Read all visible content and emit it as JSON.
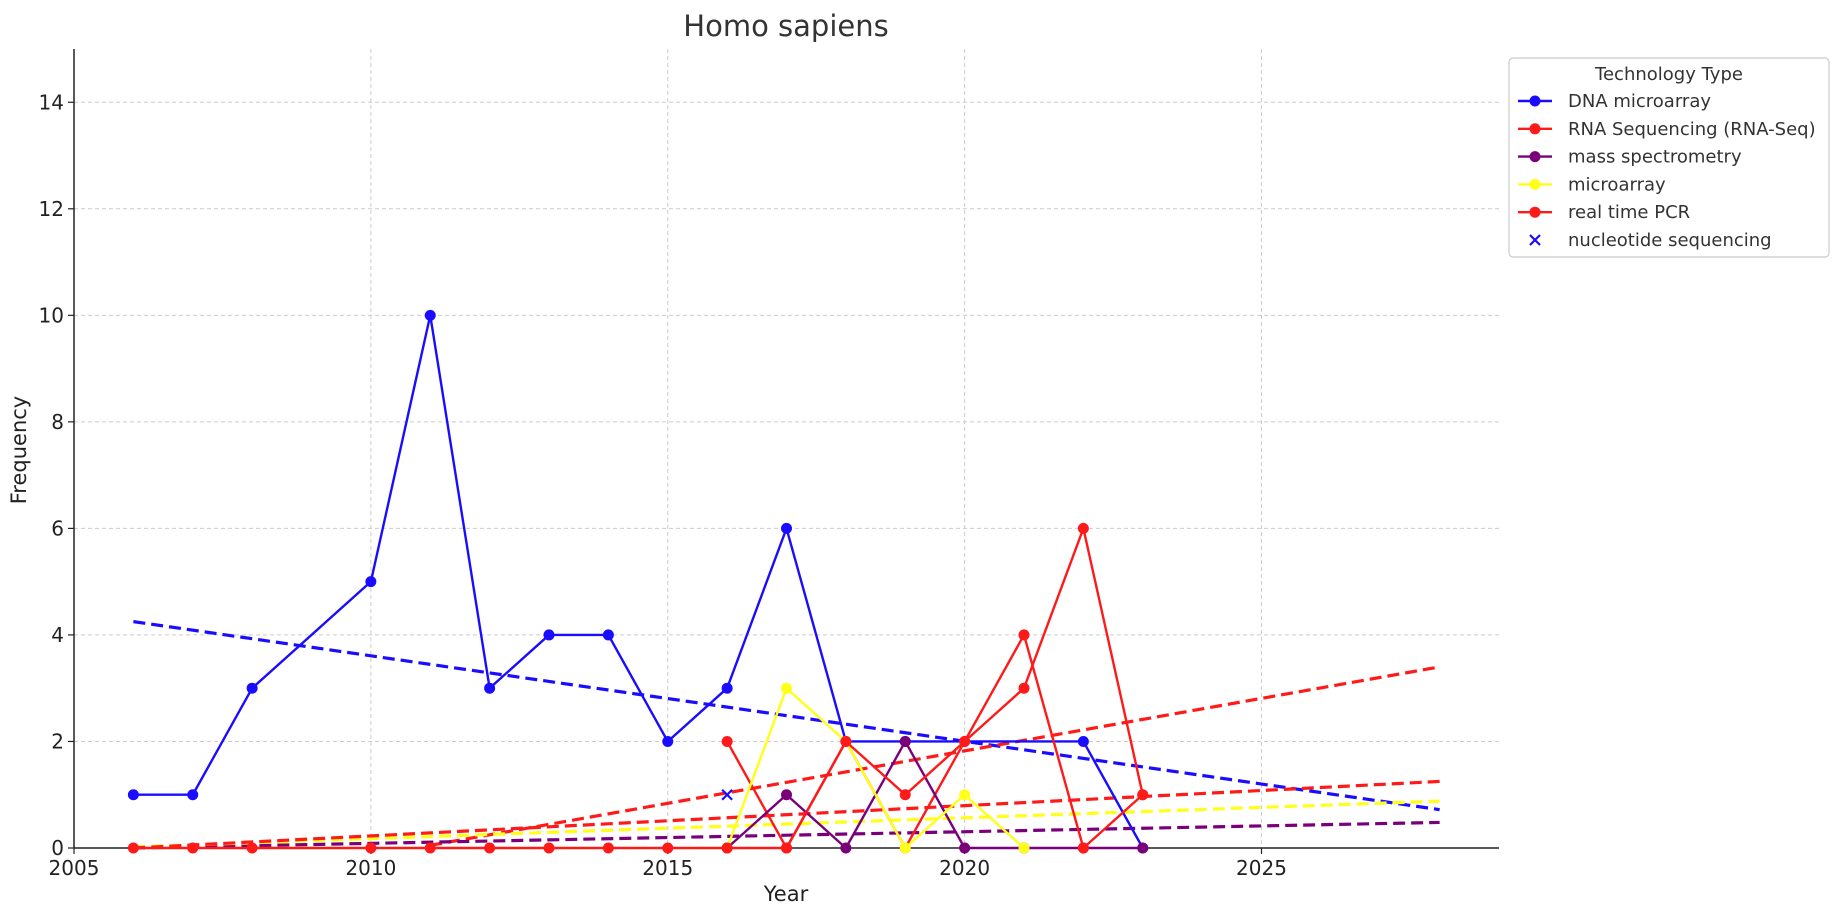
{
  "chart_data": {
    "type": "line",
    "title": "Homo sapiens",
    "xlabel": "Year",
    "ylabel": "Frequency",
    "xlim": [
      2005,
      2029
    ],
    "ylim": [
      0,
      15
    ],
    "xticks": [
      2005,
      2010,
      2015,
      2020,
      2025
    ],
    "yticks": [
      0,
      2,
      4,
      6,
      8,
      10,
      12,
      14
    ],
    "grid": true,
    "legend": {
      "title": "Technology Type",
      "placement": "outside-top-right"
    },
    "series": [
      {
        "name": "DNA microarray",
        "color": "#1a0dff",
        "style": "line-marker",
        "x": [
          2006,
          2007,
          2008,
          2010,
          2011,
          2012,
          2013,
          2014,
          2015,
          2016,
          2017,
          2018,
          2019,
          2022,
          2023
        ],
        "y": [
          1,
          1,
          3,
          5,
          10,
          3,
          4,
          4,
          2,
          3,
          6,
          2,
          2,
          2,
          0
        ],
        "trend": {
          "x": [
            2006,
            2028
          ],
          "y": [
            4.25,
            0.72
          ]
        }
      },
      {
        "name": "RNA Sequencing (RNA-Seq)",
        "color": "#ff1a1a",
        "style": "line-marker",
        "x": [
          2016,
          2017,
          2018,
          2019,
          2020,
          2021,
          2022,
          2023
        ],
        "y": [
          2,
          0,
          2,
          0,
          2,
          3,
          6,
          1
        ],
        "trend": {
          "x": [
            2011,
            2028
          ],
          "y": [
            0.05,
            3.4
          ]
        }
      },
      {
        "name": "mass spectrometry",
        "color": "#7a007a",
        "style": "line-marker",
        "x": [
          2016,
          2017,
          2018,
          2019,
          2020,
          2021,
          2022,
          2023
        ],
        "y": [
          0,
          1,
          0,
          2,
          0,
          0,
          0,
          0
        ],
        "trend": {
          "x": [
            2006,
            2028
          ],
          "y": [
            0.0,
            0.48
          ]
        }
      },
      {
        "name": "microarray",
        "color": "#ffff1a",
        "style": "line-marker",
        "x": [
          2016,
          2017,
          2018,
          2019,
          2020,
          2021
        ],
        "y": [
          0,
          3,
          2,
          0,
          1,
          0
        ],
        "trend": {
          "x": [
            2006,
            2028
          ],
          "y": [
            0.02,
            0.88
          ]
        }
      },
      {
        "name": "real time PCR",
        "color": "#ff1a1a",
        "style": "line-marker",
        "x": [
          2006,
          2007,
          2008,
          2010,
          2011,
          2012,
          2013,
          2014,
          2015,
          2016,
          2017,
          2018,
          2019,
          2020,
          2021,
          2022,
          2023
        ],
        "y": [
          0,
          0,
          0,
          0,
          0,
          0,
          0,
          0,
          0,
          0,
          0,
          2,
          1,
          2,
          4,
          0,
          1
        ],
        "trend": {
          "x": [
            2006,
            2028
          ],
          "y": [
            0.0,
            1.25
          ]
        }
      },
      {
        "name": "nucleotide sequencing",
        "color": "#1a0dff",
        "style": "marker-x",
        "x": [
          2016
        ],
        "y": [
          1
        ]
      }
    ]
  }
}
